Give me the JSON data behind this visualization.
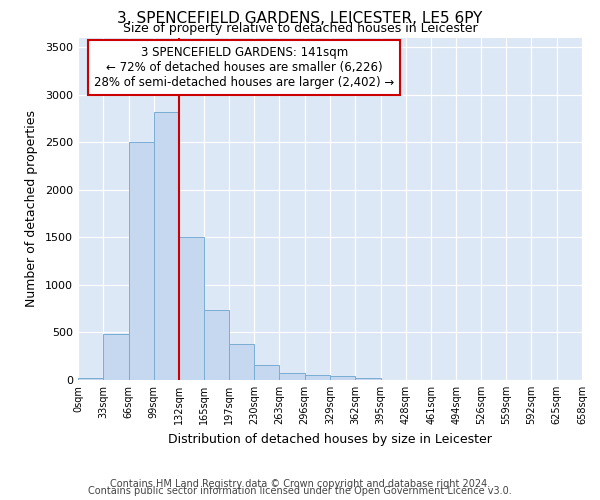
{
  "title1": "3, SPENCEFIELD GARDENS, LEICESTER, LE5 6PY",
  "title2": "Size of property relative to detached houses in Leicester",
  "xlabel": "Distribution of detached houses by size in Leicester",
  "ylabel": "Number of detached properties",
  "bar_color": "#c5d8f0",
  "bar_edge_color": "#7aadd4",
  "figure_bg": "#ffffff",
  "axes_bg": "#dce8f5",
  "annotation_box_color": "#ffffff",
  "annotation_border_color": "#cc0000",
  "vline_color": "#cc0000",
  "vline_x": 132,
  "bins": [
    0,
    33,
    66,
    99,
    132,
    165,
    197,
    230,
    263,
    296,
    329,
    362,
    395,
    428,
    461,
    494,
    526,
    559,
    592,
    625,
    658
  ],
  "bin_labels": [
    "0sqm",
    "33sqm",
    "66sqm",
    "99sqm",
    "132sqm",
    "165sqm",
    "197sqm",
    "230sqm",
    "263sqm",
    "296sqm",
    "329sqm",
    "362sqm",
    "395sqm",
    "428sqm",
    "461sqm",
    "494sqm",
    "526sqm",
    "559sqm",
    "592sqm",
    "625sqm",
    "658sqm"
  ],
  "values": [
    20,
    480,
    2500,
    2820,
    1500,
    740,
    380,
    155,
    75,
    55,
    45,
    25,
    0,
    0,
    0,
    0,
    0,
    0,
    0,
    0
  ],
  "ylim": [
    0,
    3600
  ],
  "yticks": [
    0,
    500,
    1000,
    1500,
    2000,
    2500,
    3000,
    3500
  ],
  "annotation_line1": "3 SPENCEFIELD GARDENS: 141sqm",
  "annotation_line2": "← 72% of detached houses are smaller (6,226)",
  "annotation_line3": "28% of semi-detached houses are larger (2,402) →",
  "footer1": "Contains HM Land Registry data © Crown copyright and database right 2024.",
  "footer2": "Contains public sector information licensed under the Open Government Licence v3.0.",
  "title1_fontsize": 11,
  "title2_fontsize": 9,
  "ylabel_fontsize": 9,
  "xlabel_fontsize": 9,
  "tick_fontsize": 8,
  "annot_fontsize": 8.5,
  "footer_fontsize": 7
}
